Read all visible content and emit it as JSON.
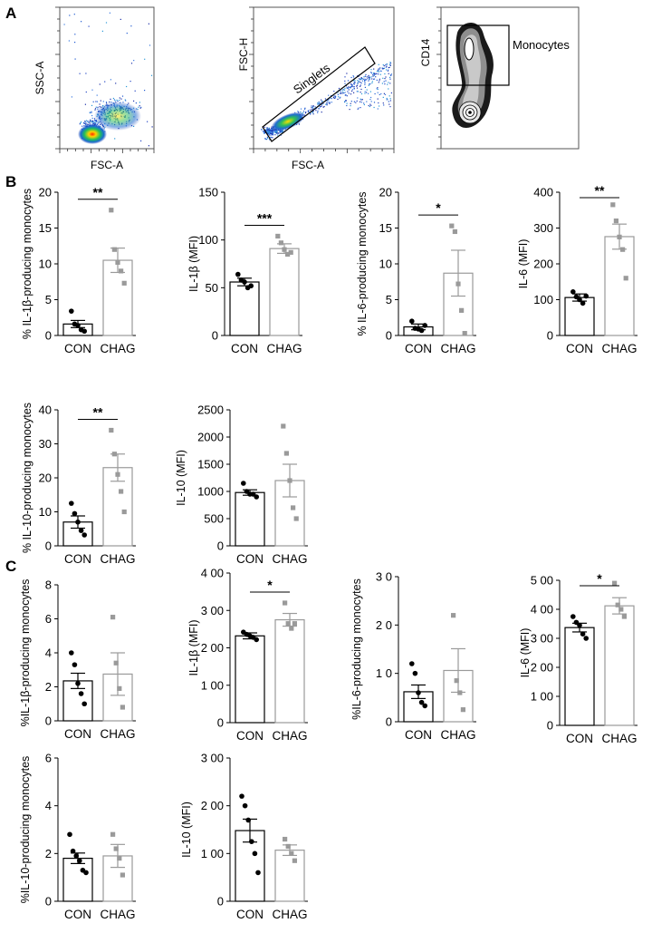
{
  "panel_labels": [
    "A",
    "B",
    "C"
  ],
  "flow": {
    "plots": [
      {
        "xlabel": "FSC-A",
        "ylabel": "SSC-A",
        "gate": ""
      },
      {
        "xlabel": "FSC-A",
        "ylabel": "FSC-H",
        "gate": "Singlets"
      },
      {
        "xlabel": "",
        "ylabel": "CD14",
        "gate": "Monocytes"
      }
    ]
  },
  "chart_data": [
    {
      "type": "bar",
      "panel": "B",
      "categories": [
        "CON",
        "CHAG"
      ],
      "ylabel": "% IL-1β-producing monocytes",
      "ylim": [
        0,
        20
      ],
      "yticks": [
        0,
        5,
        10,
        15,
        20
      ],
      "tick_labels": [
        "0",
        "5",
        "10",
        "15",
        "20"
      ],
      "means": [
        1.6,
        10.5
      ],
      "sem": [
        0.5,
        1.7
      ],
      "points": [
        [
          3.4,
          1.6,
          1.4,
          0.8,
          0.6
        ],
        [
          17.5,
          12.0,
          10.2,
          9.0,
          7.3
        ]
      ],
      "significance": "**"
    },
    {
      "type": "bar",
      "panel": "B",
      "categories": [
        "CON",
        "CHAG"
      ],
      "ylabel": "IL-1β (MFI)",
      "ylim": [
        0,
        150
      ],
      "yticks": [
        0,
        50,
        100,
        150
      ],
      "tick_labels": [
        "0",
        "50",
        "100",
        "150"
      ],
      "means": [
        56,
        91
      ],
      "sem": [
        4,
        5
      ],
      "points": [
        [
          64,
          58,
          56,
          50,
          52
        ],
        [
          104,
          97,
          90,
          85,
          87
        ]
      ],
      "significance": "***"
    },
    {
      "type": "bar",
      "panel": "B",
      "categories": [
        "CON",
        "CHAG"
      ],
      "ylabel": "% IL-6-producing monocytes",
      "ylim": [
        0,
        20
      ],
      "yticks": [
        0,
        5,
        10,
        15,
        20
      ],
      "tick_labels": [
        "0",
        "5",
        "10",
        "15",
        "20"
      ],
      "means": [
        1.2,
        8.7
      ],
      "sem": [
        0.4,
        3.2
      ],
      "points": [
        [
          2.0,
          1.0,
          0.9,
          0.7,
          1.4
        ],
        [
          15.3,
          14.5,
          7.2,
          3.5,
          0.3
        ]
      ],
      "significance": "*"
    },
    {
      "type": "bar",
      "panel": "B",
      "categories": [
        "CON",
        "CHAG"
      ],
      "ylabel": "IL-6 (MFI)",
      "ylim": [
        0,
        400
      ],
      "yticks": [
        0,
        100,
        200,
        300,
        400
      ],
      "tick_labels": [
        "0",
        "100",
        "200",
        "300",
        "400"
      ],
      "means": [
        106,
        276
      ],
      "sem": [
        10,
        35
      ],
      "points": [
        [
          122,
          108,
          100,
          90,
          110
        ],
        [
          365,
          320,
          275,
          240,
          160
        ]
      ],
      "significance": "**"
    },
    {
      "type": "bar",
      "panel": "B",
      "categories": [
        "CON",
        "CHAG"
      ],
      "ylabel": "% IL-10-producing monocytes",
      "ylim": [
        0,
        40
      ],
      "yticks": [
        0,
        10,
        20,
        30,
        40
      ],
      "tick_labels": [
        "0",
        "10",
        "20",
        "30",
        "40"
      ],
      "means": [
        7,
        23
      ],
      "sem": [
        1.8,
        4
      ],
      "points": [
        [
          12.5,
          9.5,
          7,
          4.5,
          3.2
        ],
        [
          34,
          27,
          21,
          16,
          10
        ]
      ],
      "significance": "**"
    },
    {
      "type": "bar",
      "panel": "B",
      "categories": [
        "CON",
        "CHAG"
      ],
      "ylabel": "IL-10 (MFI)",
      "ylim": [
        0,
        2500
      ],
      "yticks": [
        0,
        500,
        1000,
        1500,
        2000,
        2500
      ],
      "tick_labels": [
        "0",
        "500",
        "1000",
        "1500",
        "2000",
        "2500"
      ],
      "means": [
        980,
        1200
      ],
      "sem": [
        50,
        300
      ],
      "points": [
        [
          1150,
          1000,
          950,
          950,
          900
        ],
        [
          2200,
          1700,
          1200,
          700,
          500
        ]
      ],
      "significance": ""
    },
    {
      "type": "bar",
      "panel": "C",
      "categories": [
        "CON",
        "CHAG"
      ],
      "ylabel": "%IL-1β-producing monocytes",
      "ylim": [
        0,
        8
      ],
      "yticks": [
        0,
        2,
        4,
        6,
        8
      ],
      "tick_labels": [
        "0",
        "2",
        "4",
        "6",
        "8"
      ],
      "means": [
        2.35,
        2.75
      ],
      "sem": [
        0.45,
        1.25
      ],
      "points": [
        [
          4.0,
          3.3,
          2.2,
          1.6,
          1.0
        ],
        [
          6.1,
          3.4,
          1.9,
          0.8
        ]
      ],
      "significance": ""
    },
    {
      "type": "bar",
      "panel": "C",
      "categories": [
        "CON",
        "CHAG"
      ],
      "ylabel": "IL-1β (MFI)",
      "ylim": [
        0,
        400
      ],
      "yticks": [
        0,
        100,
        200,
        300,
        400
      ],
      "tick_labels": [
        "0",
        "1 00",
        "2 00",
        "3 00",
        "4 00"
      ],
      "means": [
        232,
        275
      ],
      "sem": [
        8,
        17
      ],
      "points": [
        [
          242,
          236,
          232,
          228,
          222
        ],
        [
          320,
          265,
          252,
          265
        ]
      ],
      "significance": "*"
    },
    {
      "type": "bar",
      "panel": "C",
      "categories": [
        "CON",
        "CHAG"
      ],
      "ylabel": "%IL-6-producing monocytes",
      "ylim": [
        0,
        30
      ],
      "yticks": [
        0,
        10,
        20,
        30
      ],
      "tick_labels": [
        "0",
        "1 0",
        "2 0",
        "3 0"
      ],
      "means": [
        6.2,
        10.6
      ],
      "sem": [
        1.4,
        4.5
      ],
      "points": [
        [
          12,
          10,
          6,
          4,
          3.3
        ],
        [
          22,
          8.5,
          6,
          2.5
        ]
      ],
      "significance": ""
    },
    {
      "type": "bar",
      "panel": "C",
      "categories": [
        "CON",
        "CHAG"
      ],
      "ylabel": "IL-6 (MFI)",
      "ylim": [
        0,
        500
      ],
      "yticks": [
        0,
        100,
        200,
        300,
        400,
        500
      ],
      "tick_labels": [
        "0",
        "1 00",
        "2 00",
        "3 00",
        "4 00",
        "5 00"
      ],
      "means": [
        337,
        412
      ],
      "sem": [
        15,
        28
      ],
      "points": [
        [
          375,
          355,
          345,
          315,
          300
        ],
        [
          490,
          415,
          400,
          375
        ]
      ],
      "significance": "*"
    },
    {
      "type": "bar",
      "panel": "C",
      "categories": [
        "CON",
        "CHAG"
      ],
      "ylabel": "%IL-10-producing monocytes",
      "ylim": [
        0,
        6
      ],
      "yticks": [
        0,
        2,
        4,
        6
      ],
      "tick_labels": [
        "0",
        "2",
        "4",
        "6"
      ],
      "means": [
        1.8,
        1.9
      ],
      "sem": [
        0.22,
        0.48
      ],
      "points": [
        [
          2.8,
          2.1,
          1.9,
          1.7,
          1.3,
          1.2
        ],
        [
          2.8,
          2.2,
          1.8,
          1.1
        ]
      ],
      "significance": ""
    },
    {
      "type": "bar",
      "panel": "C",
      "categories": [
        "CON",
        "CHAG"
      ],
      "ylabel": "IL-10 (MFI)",
      "ylim": [
        0,
        300
      ],
      "yticks": [
        0,
        100,
        200,
        300
      ],
      "tick_labels": [
        "0",
        "1 00",
        "2 00",
        "3 00"
      ],
      "means": [
        148,
        107
      ],
      "sem": [
        24,
        11
      ],
      "points": [
        [
          220,
          200,
          170,
          125,
          100,
          60
        ],
        [
          130,
          115,
          100,
          85
        ]
      ],
      "significance": ""
    }
  ]
}
